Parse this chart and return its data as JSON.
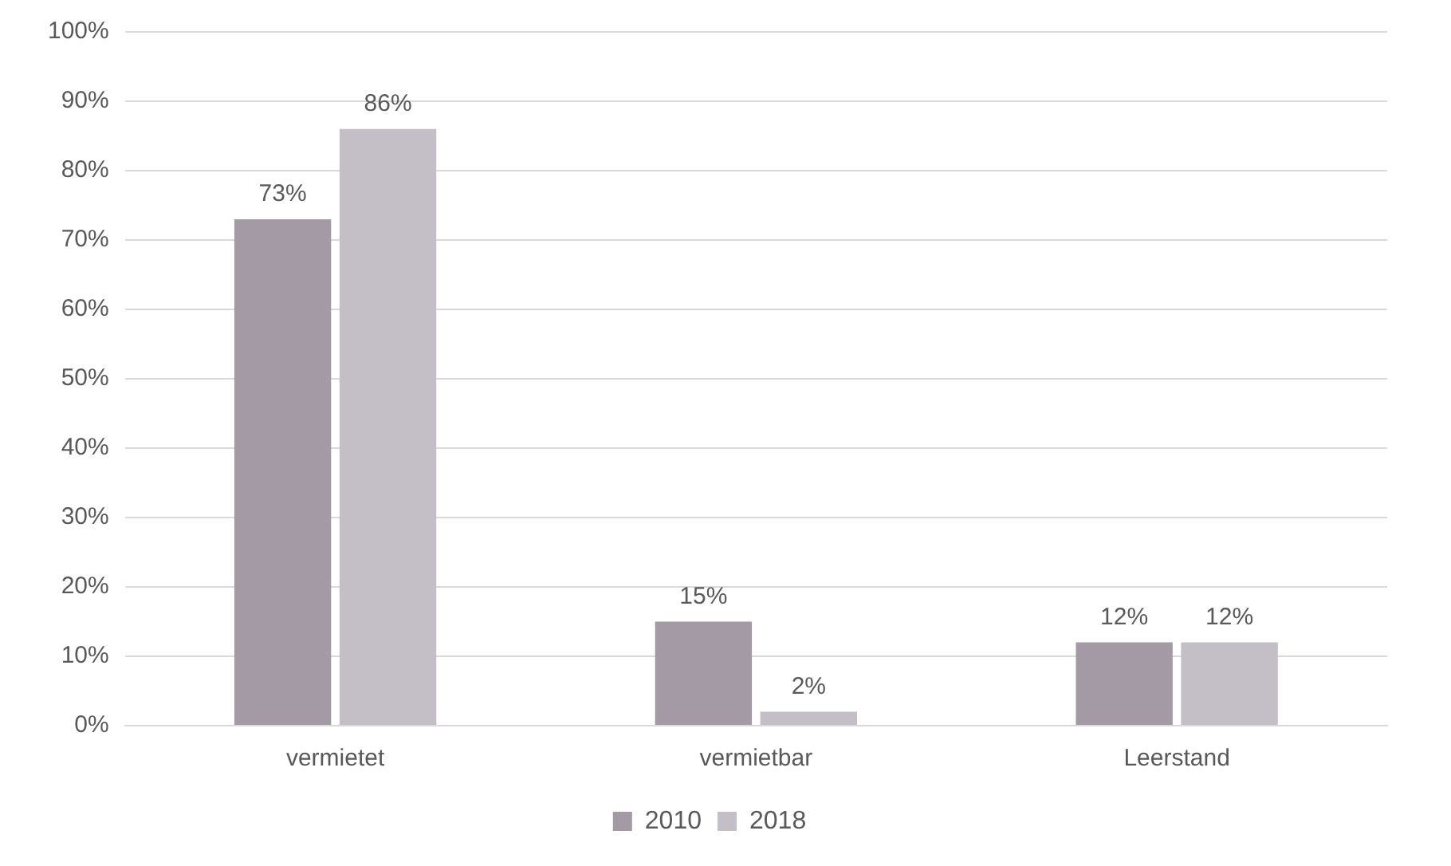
{
  "chart_data": {
    "type": "bar",
    "categories": [
      "vermietet",
      "vermietbar",
      "Leerstand"
    ],
    "series": [
      {
        "name": "2010",
        "color": "#a39aa6",
        "values": [
          73,
          15,
          12
        ],
        "value_labels": [
          "73%",
          "15%",
          "12%"
        ]
      },
      {
        "name": "2018",
        "color": "#c4bec6",
        "values": [
          86,
          2,
          12
        ],
        "value_labels": [
          "86%",
          "2%",
          "12%"
        ]
      }
    ],
    "ylim": [
      0,
      100
    ],
    "yticks": [
      {
        "value": 0,
        "label": "0%"
      },
      {
        "value": 10,
        "label": "10%"
      },
      {
        "value": 20,
        "label": "20%"
      },
      {
        "value": 30,
        "label": "30%"
      },
      {
        "value": 40,
        "label": "40%"
      },
      {
        "value": 50,
        "label": "50%"
      },
      {
        "value": 60,
        "label": "60%"
      },
      {
        "value": 70,
        "label": "70%"
      },
      {
        "value": 80,
        "label": "80%"
      },
      {
        "value": 90,
        "label": "90%"
      },
      {
        "value": 100,
        "label": "100%"
      }
    ],
    "grid": "y",
    "legend": "bottom"
  }
}
